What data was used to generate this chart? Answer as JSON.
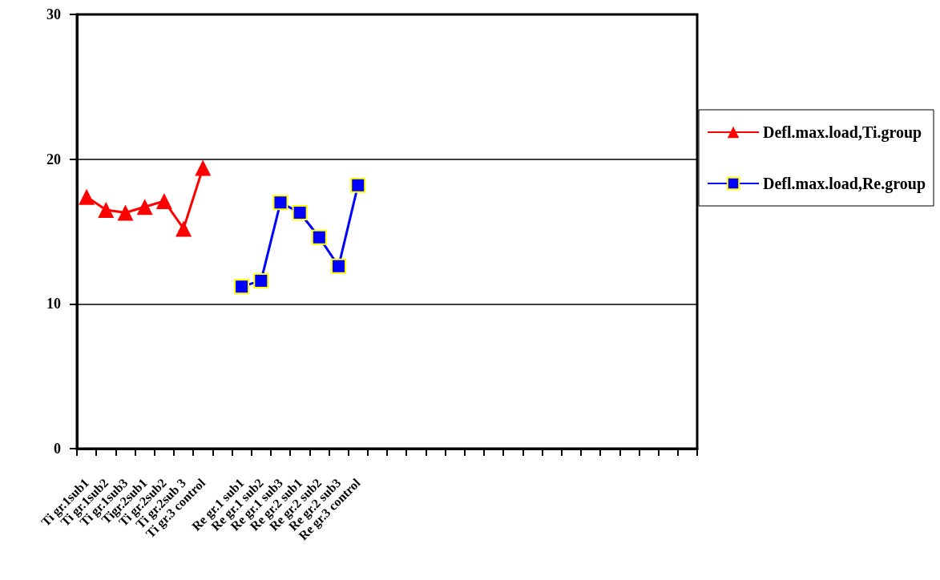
{
  "chart_data": {
    "type": "line",
    "categories": [
      "Ti gr.1sub1",
      "Ti gr.1sub2",
      "Ti gr.1sub3",
      "Tigr.2sub1",
      "Ti gr.2sub2",
      "Ti gr.2sub 3",
      "Ti gr.3 control",
      null,
      "Re gr.1 sub1",
      "Re gr.1 sub2",
      "Re gr.1 sub3",
      "Re gr.2 sub1",
      "Re gr.2 sub2",
      "Re gr.2 sub3",
      "Re gr.3 control",
      null,
      null,
      null,
      null,
      null,
      null,
      null,
      null,
      null,
      null,
      null,
      null,
      null,
      null,
      null,
      null,
      null
    ],
    "series": [
      {
        "name": "Defl.max.load,Ti.group",
        "color": "#ff0000",
        "marker": "triangle",
        "values": [
          17.4,
          16.5,
          16.3,
          16.7,
          17.1,
          15.2,
          19.4,
          null,
          null,
          null,
          null,
          null,
          null,
          null,
          null,
          null,
          null,
          null,
          null,
          null,
          null,
          null,
          null,
          null,
          null,
          null,
          null,
          null,
          null,
          null,
          null,
          null
        ]
      },
      {
        "name": "Defl.max.load,Re.group",
        "color": "#0000ff",
        "marker": "square",
        "values": [
          null,
          null,
          null,
          null,
          null,
          null,
          null,
          null,
          11.2,
          11.6,
          17.0,
          16.3,
          14.6,
          12.6,
          18.2,
          null,
          null,
          null,
          null,
          null,
          null,
          null,
          null,
          null,
          null,
          null,
          null,
          null,
          null,
          null,
          null,
          null
        ]
      }
    ],
    "ylim": [
      0,
      30
    ],
    "yticks": [
      0,
      10,
      20,
      30
    ],
    "grid": "y",
    "legend": "right"
  }
}
